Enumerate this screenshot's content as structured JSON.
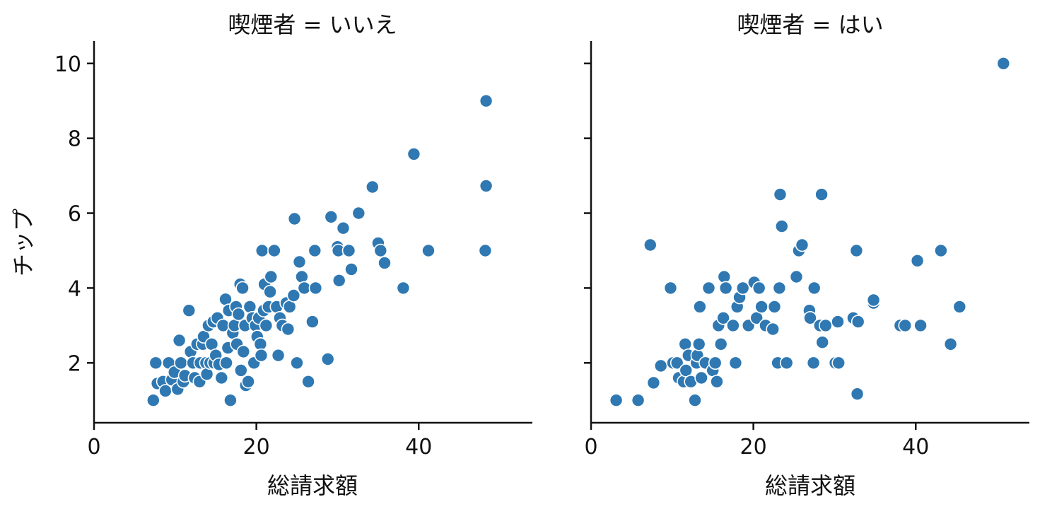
{
  "colors": {
    "marker": "#2f78b2",
    "axis": "#111111",
    "background": "#ffffff"
  },
  "chart_data": {
    "type": "scatter",
    "grid": false,
    "ylabel": "チップ",
    "xlim": [
      0,
      54
    ],
    "ylim": [
      0.4,
      10.6
    ],
    "xticks": [
      0,
      20,
      40
    ],
    "yticks": [
      2,
      4,
      6,
      8,
      10
    ],
    "panels": [
      {
        "title": "喫煙者 = いいえ",
        "xlabel": "総請求額",
        "points": [
          [
            7.3,
            1.0
          ],
          [
            7.6,
            2.0
          ],
          [
            7.8,
            1.45
          ],
          [
            8.5,
            1.5
          ],
          [
            8.8,
            1.25
          ],
          [
            9.2,
            2.0
          ],
          [
            9.6,
            1.55
          ],
          [
            9.9,
            1.75
          ],
          [
            10.3,
            1.3
          ],
          [
            10.5,
            2.6
          ],
          [
            10.7,
            2.0
          ],
          [
            11.0,
            1.5
          ],
          [
            11.2,
            1.66
          ],
          [
            11.7,
            3.4
          ],
          [
            11.9,
            2.3
          ],
          [
            12.2,
            2.0
          ],
          [
            12.4,
            1.6
          ],
          [
            12.7,
            2.5
          ],
          [
            13.0,
            1.5
          ],
          [
            13.1,
            2.0
          ],
          [
            13.4,
            2.5
          ],
          [
            13.5,
            2.7
          ],
          [
            13.8,
            2.0
          ],
          [
            13.9,
            1.7
          ],
          [
            14.1,
            3.0
          ],
          [
            14.3,
            2.0
          ],
          [
            14.5,
            2.5
          ],
          [
            14.7,
            3.1
          ],
          [
            14.8,
            2.0
          ],
          [
            15.0,
            2.2
          ],
          [
            15.2,
            3.2
          ],
          [
            15.4,
            1.96
          ],
          [
            15.7,
            1.6
          ],
          [
            15.9,
            3.0
          ],
          [
            16.2,
            3.7
          ],
          [
            16.3,
            2.0
          ],
          [
            16.5,
            2.4
          ],
          [
            16.6,
            3.4
          ],
          [
            16.8,
            1.0
          ],
          [
            17.1,
            2.8
          ],
          [
            17.3,
            3.0
          ],
          [
            17.5,
            3.5
          ],
          [
            17.6,
            2.5
          ],
          [
            17.8,
            3.3
          ],
          [
            18.0,
            4.1
          ],
          [
            18.1,
            1.8
          ],
          [
            18.3,
            4.0
          ],
          [
            18.4,
            2.3
          ],
          [
            18.6,
            3.0
          ],
          [
            18.7,
            1.4
          ],
          [
            19.0,
            1.5
          ],
          [
            19.2,
            3.5
          ],
          [
            19.5,
            3.2
          ],
          [
            19.7,
            2.0
          ],
          [
            19.9,
            3.0
          ],
          [
            20.1,
            2.7
          ],
          [
            20.3,
            3.2
          ],
          [
            20.5,
            2.5
          ],
          [
            20.6,
            2.2
          ],
          [
            20.7,
            5.0
          ],
          [
            20.9,
            3.4
          ],
          [
            21.0,
            4.1
          ],
          [
            21.2,
            3.0
          ],
          [
            21.5,
            3.5
          ],
          [
            21.7,
            3.9
          ],
          [
            21.8,
            4.3
          ],
          [
            22.2,
            5.0
          ],
          [
            22.5,
            3.5
          ],
          [
            22.7,
            2.2
          ],
          [
            22.9,
            3.2
          ],
          [
            23.2,
            3.0
          ],
          [
            23.7,
            3.6
          ],
          [
            23.9,
            2.9
          ],
          [
            24.1,
            3.5
          ],
          [
            24.6,
            3.8
          ],
          [
            24.7,
            5.85
          ],
          [
            25.0,
            2.0
          ],
          [
            25.3,
            4.7
          ],
          [
            25.6,
            4.3
          ],
          [
            25.9,
            4.0
          ],
          [
            26.4,
            1.5
          ],
          [
            26.9,
            3.1
          ],
          [
            27.2,
            5.0
          ],
          [
            27.3,
            4.0
          ],
          [
            28.8,
            2.1
          ],
          [
            29.2,
            5.9
          ],
          [
            30.0,
            5.1
          ],
          [
            30.1,
            5.0
          ],
          [
            30.2,
            4.2
          ],
          [
            30.7,
            5.6
          ],
          [
            31.4,
            5.0
          ],
          [
            31.7,
            4.5
          ],
          [
            32.6,
            6.0
          ],
          [
            34.3,
            6.7
          ],
          [
            35.0,
            5.2
          ],
          [
            35.3,
            5.0
          ],
          [
            35.8,
            4.67
          ],
          [
            38.1,
            4.0
          ],
          [
            39.4,
            7.58
          ],
          [
            41.2,
            5.0
          ],
          [
            48.2,
            5.0
          ],
          [
            48.3,
            6.73
          ],
          [
            48.3,
            9.0
          ]
        ]
      },
      {
        "title": "喫煙者 = はい",
        "xlabel": "総請求額",
        "points": [
          [
            3.1,
            1.0
          ],
          [
            5.8,
            1.0
          ],
          [
            7.3,
            5.15
          ],
          [
            7.7,
            1.47
          ],
          [
            8.6,
            1.92
          ],
          [
            9.8,
            4.0
          ],
          [
            10.1,
            2.0
          ],
          [
            10.6,
            2.0
          ],
          [
            10.8,
            1.6
          ],
          [
            11.4,
            1.5
          ],
          [
            11.6,
            2.5
          ],
          [
            11.7,
            1.8
          ],
          [
            12.0,
            2.2
          ],
          [
            12.3,
            1.5
          ],
          [
            12.8,
            1.0
          ],
          [
            13.0,
            2.0
          ],
          [
            13.1,
            2.2
          ],
          [
            13.3,
            2.5
          ],
          [
            13.4,
            3.5
          ],
          [
            13.6,
            1.6
          ],
          [
            14.1,
            2.0
          ],
          [
            14.5,
            4.0
          ],
          [
            15.0,
            1.8
          ],
          [
            15.3,
            2.0
          ],
          [
            15.5,
            1.5
          ],
          [
            15.7,
            3.0
          ],
          [
            16.0,
            2.5
          ],
          [
            16.3,
            3.2
          ],
          [
            16.4,
            4.3
          ],
          [
            16.6,
            4.0
          ],
          [
            17.5,
            3.0
          ],
          [
            17.8,
            2.0
          ],
          [
            18.0,
            3.5
          ],
          [
            18.3,
            3.75
          ],
          [
            18.7,
            4.0
          ],
          [
            19.4,
            3.0
          ],
          [
            20.1,
            4.15
          ],
          [
            20.4,
            3.2
          ],
          [
            20.7,
            4.0
          ],
          [
            21.0,
            3.5
          ],
          [
            21.5,
            3.0
          ],
          [
            22.4,
            2.9
          ],
          [
            22.6,
            3.5
          ],
          [
            23.0,
            2.0
          ],
          [
            23.2,
            4.0
          ],
          [
            23.3,
            6.5
          ],
          [
            23.5,
            5.65
          ],
          [
            24.1,
            2.0
          ],
          [
            25.3,
            4.3
          ],
          [
            25.6,
            5.0
          ],
          [
            26.0,
            5.15
          ],
          [
            26.9,
            3.4
          ],
          [
            27.0,
            3.2
          ],
          [
            27.4,
            2.0
          ],
          [
            27.5,
            4.0
          ],
          [
            28.2,
            3.0
          ],
          [
            28.4,
            6.5
          ],
          [
            28.5,
            2.55
          ],
          [
            28.9,
            3.0
          ],
          [
            30.1,
            2.0
          ],
          [
            30.4,
            3.1
          ],
          [
            30.5,
            2.0
          ],
          [
            32.3,
            3.2
          ],
          [
            32.7,
            5.0
          ],
          [
            32.8,
            1.17
          ],
          [
            32.9,
            3.1
          ],
          [
            34.8,
            3.6
          ],
          [
            34.8,
            3.68
          ],
          [
            38.1,
            3.0
          ],
          [
            38.7,
            3.0
          ],
          [
            40.2,
            4.73
          ],
          [
            40.6,
            3.0
          ],
          [
            43.1,
            5.0
          ],
          [
            44.3,
            2.5
          ],
          [
            45.4,
            3.5
          ],
          [
            50.8,
            10.0
          ]
        ]
      }
    ]
  }
}
